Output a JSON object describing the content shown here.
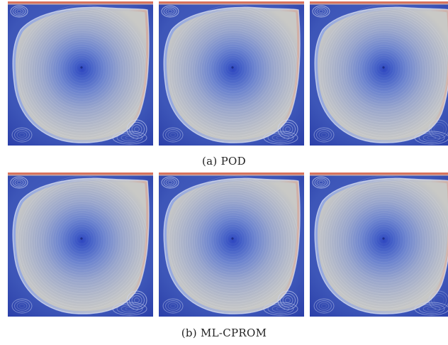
{
  "figure": {
    "subfigures": [
      {
        "label": "(a) POD",
        "panel_count": 3
      },
      {
        "label": "(b) ML-CPROM",
        "panel_count": 3
      }
    ]
  },
  "colors": {
    "background_blue": "#3d56b8",
    "deep_blue": "#2a3ea8",
    "center_blue": "#3a52c8",
    "mid_grey": "#b3b9c9",
    "lid_red": "#d8735c"
  }
}
